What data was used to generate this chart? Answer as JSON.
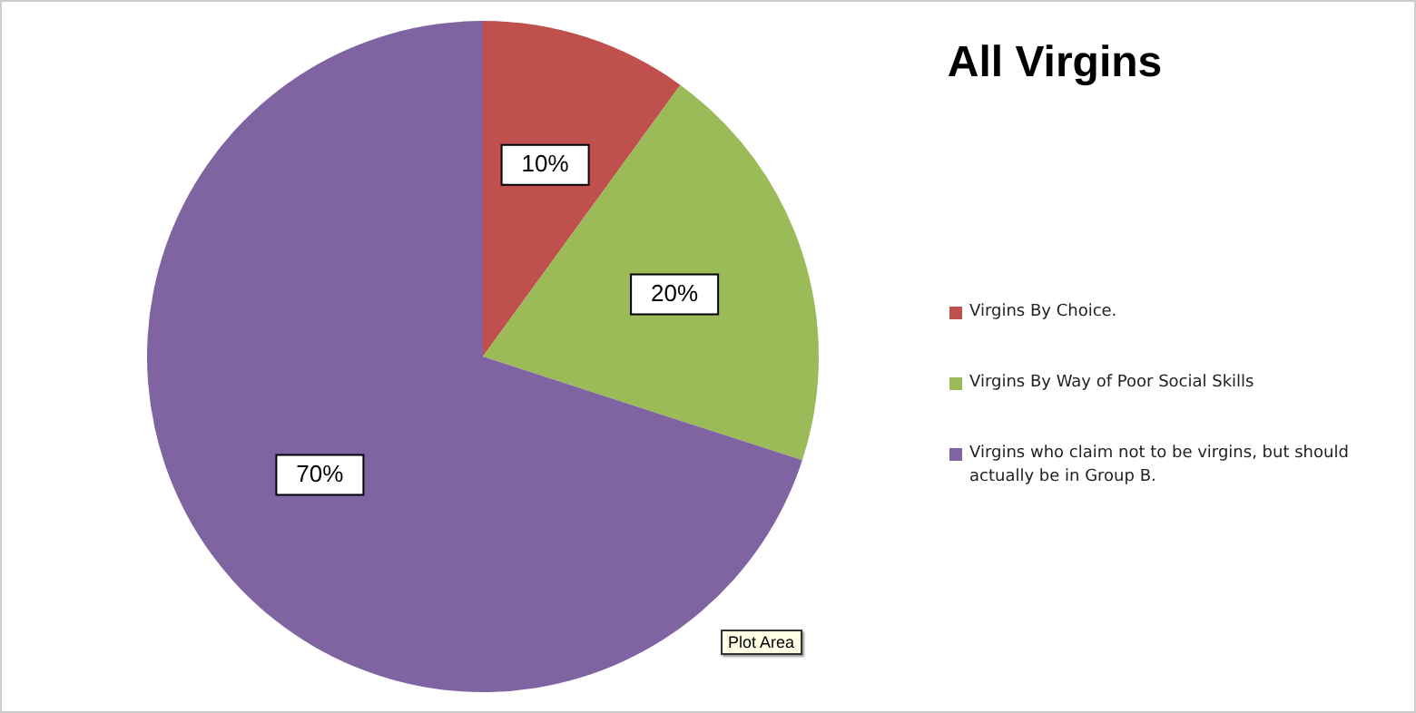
{
  "chart_data": {
    "type": "pie",
    "title": "All Virgins",
    "categories": [
      "Virgins By Choice.",
      "Virgins By Way of Poor Social Skills",
      "Virgins who claim not to be virgins, but should actually be in Group B."
    ],
    "values": [
      10,
      20,
      70
    ],
    "colors": [
      "#c0504d",
      "#9bbb59",
      "#8064a2"
    ],
    "data_labels": true,
    "value_labels": [
      "10%",
      "20%",
      "70%"
    ],
    "legend": "right",
    "annotations": [
      "Plot Area"
    ]
  }
}
